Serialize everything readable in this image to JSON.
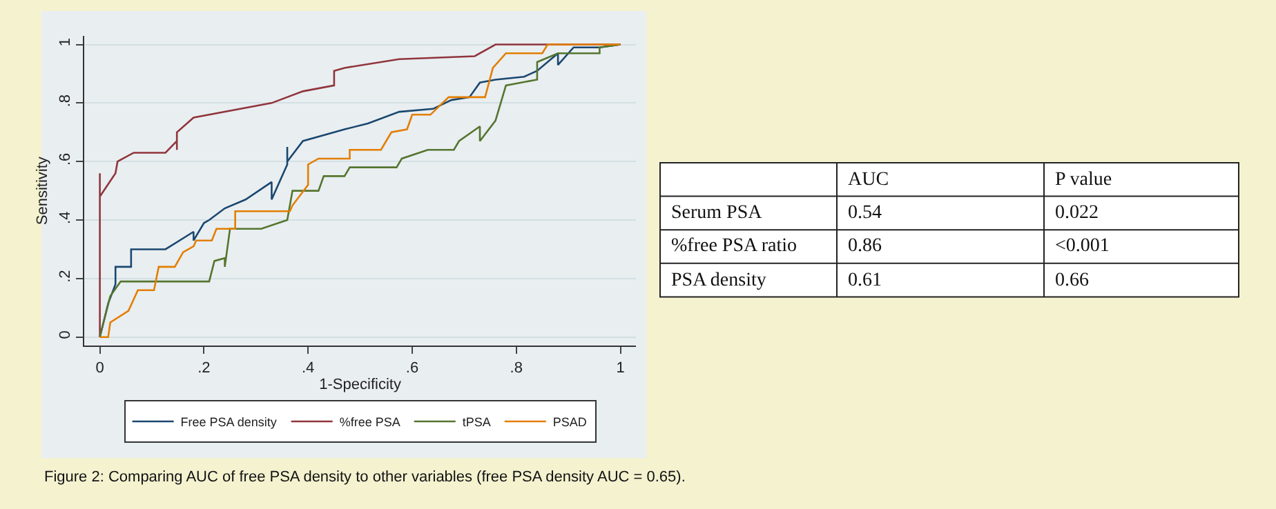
{
  "chart_data": [
    {
      "type": "line",
      "xlabel": "1-Specificity",
      "ylabel": "Sensitivity",
      "xlim": [
        -0.03,
        1.03
      ],
      "ylim": [
        -0.03,
        1.03
      ],
      "xticks": [
        0,
        {
          "value": 0.2,
          "label": ".2"
        },
        {
          "value": 0.4,
          "label": ".4"
        },
        {
          "value": 0.6,
          "label": ".6"
        },
        {
          "value": 0.8,
          "label": ".8"
        },
        1
      ],
      "yticks": [
        0,
        {
          "value": 0.2,
          "label": ".2"
        },
        {
          "value": 0.4,
          "label": ".4"
        },
        {
          "value": 0.6,
          "label": ".6"
        },
        {
          "value": 0.8,
          "label": ".8"
        },
        1
      ],
      "grid": "y",
      "legend": "bottom",
      "marker": "none",
      "line_style": "solid",
      "annotations": [
        "Figure 2: Comparing AUC of free PSA density to other variables (free PSA density AUC = 0.65)."
      ],
      "series": [
        {
          "name": "Free PSA density",
          "color": "#1a476f",
          "x": [
            0,
            0.007,
            0.016,
            0.03,
            0.03,
            0.06,
            0.06,
            0.126,
            0.18,
            0.18,
            0.2,
            0.21,
            0.24,
            0.28,
            0.33,
            0.33,
            0.36,
            0.36,
            0.36,
            0.39,
            0.43,
            0.47,
            0.515,
            0.575,
            0.64,
            0.675,
            0.71,
            0.73,
            0.76,
            0.815,
            0.84,
            0.88,
            0.88,
            0.91,
            0.96,
            1
          ],
          "values": [
            0,
            0.05,
            0.115,
            0.18,
            0.24,
            0.24,
            0.3,
            0.3,
            0.36,
            0.33,
            0.39,
            0.4,
            0.44,
            0.47,
            0.53,
            0.47,
            0.59,
            0.65,
            0.6,
            0.67,
            0.69,
            0.71,
            0.73,
            0.77,
            0.78,
            0.81,
            0.82,
            0.87,
            0.88,
            0.89,
            0.91,
            0.97,
            0.93,
            0.99,
            0.99,
            1
          ]
        },
        {
          "name": "%free PSA",
          "color": "#90353b",
          "x": [
            0,
            0,
            0,
            0.03,
            0.034,
            0.065,
            0.126,
            0.148,
            0.148,
            0.148,
            0.18,
            0.33,
            0.39,
            0.45,
            0.45,
            0.47,
            0.575,
            0.72,
            0.76,
            1
          ],
          "values": [
            0,
            0.56,
            0.48,
            0.56,
            0.6,
            0.63,
            0.63,
            0.67,
            0.64,
            0.7,
            0.75,
            0.8,
            0.84,
            0.86,
            0.91,
            0.92,
            0.95,
            0.96,
            1,
            1
          ]
        },
        {
          "name": "tPSA",
          "color": "#55752f",
          "x": [
            0,
            0.007,
            0.02,
            0.04,
            0.21,
            0.22,
            0.24,
            0.24,
            0.25,
            0.31,
            0.36,
            0.37,
            0.42,
            0.43,
            0.47,
            0.48,
            0.57,
            0.58,
            0.63,
            0.68,
            0.69,
            0.73,
            0.73,
            0.76,
            0.78,
            0.84,
            0.84,
            0.88,
            0.96,
            0.96,
            1
          ],
          "values": [
            0,
            0.05,
            0.14,
            0.19,
            0.19,
            0.26,
            0.27,
            0.24,
            0.37,
            0.37,
            0.4,
            0.5,
            0.5,
            0.55,
            0.55,
            0.58,
            0.58,
            0.61,
            0.64,
            0.64,
            0.67,
            0.72,
            0.67,
            0.74,
            0.86,
            0.88,
            0.94,
            0.97,
            0.97,
            0.99,
            1
          ]
        },
        {
          "name": "PSAD",
          "color": "#e37e00",
          "x": [
            0,
            0.016,
            0.02,
            0.055,
            0.073,
            0.104,
            0.113,
            0.144,
            0.16,
            0.18,
            0.185,
            0.215,
            0.224,
            0.26,
            0.26,
            0.365,
            0.37,
            0.4,
            0.4,
            0.42,
            0.48,
            0.48,
            0.54,
            0.56,
            0.59,
            0.6,
            0.635,
            0.67,
            0.74,
            0.755,
            0.78,
            0.85,
            0.86,
            1
          ],
          "values": [
            0,
            0,
            0.05,
            0.09,
            0.16,
            0.16,
            0.24,
            0.24,
            0.29,
            0.31,
            0.33,
            0.33,
            0.37,
            0.37,
            0.43,
            0.43,
            0.45,
            0.52,
            0.59,
            0.61,
            0.61,
            0.64,
            0.64,
            0.7,
            0.71,
            0.76,
            0.76,
            0.82,
            0.82,
            0.92,
            0.97,
            0.97,
            1,
            1
          ]
        }
      ]
    },
    {
      "type": "other",
      "annotations": [
        "AUC",
        "P value",
        "Serum PSA",
        "0.54",
        "0.022",
        "%free PSA ratio",
        "0.86",
        "<0.001",
        "PSA density",
        "0.61",
        "0.66"
      ]
    }
  ]
}
